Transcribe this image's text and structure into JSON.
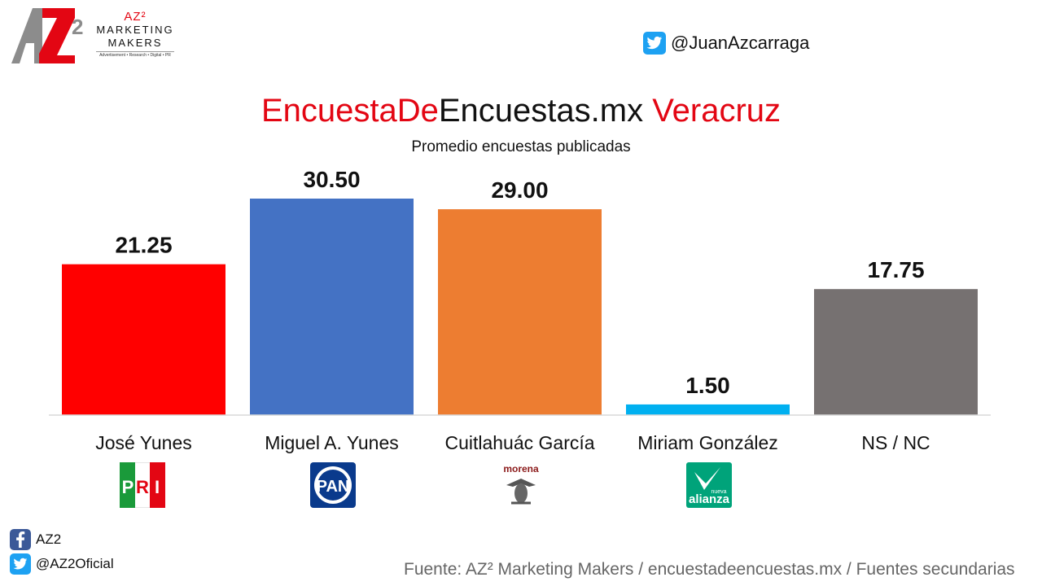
{
  "brand": {
    "mark": "AZ2",
    "name_line1": "AZ²",
    "name_line2": "MARKETING",
    "name_line3": "MAKERS",
    "tagline": "Advertisement • Research • Digital • PR"
  },
  "header": {
    "twitter_handle": "@JuanAzcarraga",
    "title_part1": "EncuestaDe",
    "title_part2": "Encuestas.mx",
    "title_part3": "Veracruz",
    "subtitle": "Promedio encuestas publicadas"
  },
  "colors": {
    "title_red": "#e30613",
    "twitter_blue": "#1da1f2",
    "facebook_blue": "#3b5998"
  },
  "chart_data": {
    "type": "bar",
    "title": "EncuestaDeEncuestas.mx Veracruz",
    "subtitle": "Promedio encuestas publicadas",
    "categories": [
      "José Yunes",
      "Miguel A. Yunes",
      "Cuitlahuác García",
      "Miriam González",
      "NS / NC"
    ],
    "values": [
      21.25,
      30.5,
      29.0,
      1.5,
      17.75
    ],
    "value_labels": [
      "21.25",
      "30.50",
      "29.00",
      "1.50",
      "17.75"
    ],
    "colors": [
      "#ff0000",
      "#4472c4",
      "#ed7d31",
      "#00b0f0",
      "#767171"
    ],
    "xlabel": "",
    "ylabel": "",
    "ylim": [
      0,
      36
    ],
    "grid": false,
    "legend": "none"
  },
  "party_logos": [
    {
      "name": "pri-logo",
      "label": "PRI"
    },
    {
      "name": "pan-logo",
      "label": "PAN"
    },
    {
      "name": "morena-logo",
      "label": "morena"
    },
    {
      "name": "nueva-alianza-logo",
      "label": "alianza",
      "small": "nueva"
    }
  ],
  "footer": {
    "facebook_label": "AZ2",
    "twitter_label": "@AZ2Oficial",
    "source": "Fuente: AZ² Marketing Makers / encuestadeencuestas.mx / Fuentes secundarias"
  }
}
